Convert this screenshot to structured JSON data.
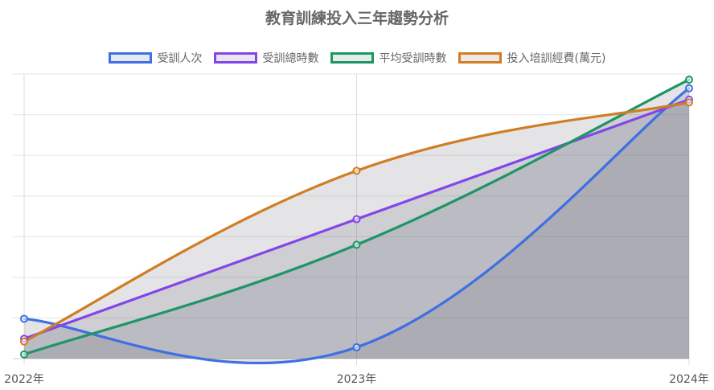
{
  "chart_data": {
    "type": "area",
    "title": "教育訓練投入三年趨勢分析",
    "categories": [
      "2022年",
      "2023年",
      "2024年"
    ],
    "ylim": [
      0,
      100
    ],
    "grid": true,
    "legend_position": "top",
    "series": [
      {
        "name": "受訓人次",
        "values": [
          14,
          4,
          95
        ],
        "color": "#3e6fe3",
        "fill": "#e6e8f0"
      },
      {
        "name": "受訓總時數",
        "values": [
          7,
          49,
          91
        ],
        "color": "#8246e8",
        "fill": "#e9e6f1"
      },
      {
        "name": "平均受訓時數",
        "values": [
          1.5,
          40,
          98
        ],
        "color": "#1e9565",
        "fill": "#e3ece7"
      },
      {
        "name": "投入培訓經費(萬元)",
        "values": [
          6,
          66,
          90
        ],
        "color": "#d07d24",
        "fill": "#eee9e3"
      }
    ]
  }
}
